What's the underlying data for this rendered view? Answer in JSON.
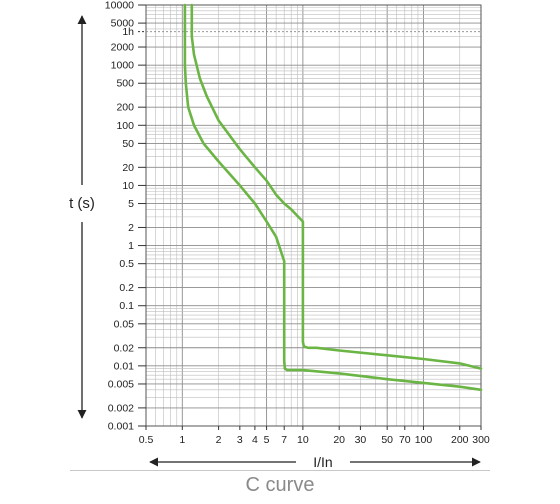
{
  "chart_data": {
    "type": "line",
    "title": "C curve",
    "xlabel": "I / In",
    "ylabel": "t (s)",
    "x_scale": "log",
    "y_scale": "log",
    "xlim": [
      0.5,
      300
    ],
    "ylim": [
      0.001,
      10000
    ],
    "grid": true,
    "x_ticks": [
      "0.5",
      "1",
      "2",
      "3",
      "4",
      "5",
      "7",
      "10",
      "20",
      "30",
      "50",
      "70",
      "100",
      "200",
      "300"
    ],
    "x_tick_values": [
      0.5,
      1,
      2,
      3,
      4,
      5,
      7,
      10,
      20,
      30,
      50,
      70,
      100,
      200,
      300
    ],
    "y_ticks": [
      "10000",
      "5000",
      "1h",
      "2000",
      "1000",
      "500",
      "200",
      "100",
      "50",
      "20",
      "10",
      "5",
      "2",
      "1",
      "0.5",
      "0.2",
      "0.1",
      "0.05",
      "0.02",
      "0.01",
      "0.005",
      "0.002",
      "0.001"
    ],
    "y_tick_values": [
      10000,
      5000,
      3600,
      2000,
      1000,
      500,
      200,
      100,
      50,
      20,
      10,
      5,
      2,
      1,
      0.5,
      0.2,
      0.1,
      0.05,
      0.02,
      0.01,
      0.005,
      0.002,
      0.001
    ],
    "line_color": "#6bb545",
    "series": [
      {
        "x": [
          1.05,
          1.05,
          1.07,
          1.12,
          1.25,
          1.5,
          2.0,
          3.0,
          4.0,
          5.0,
          6.0,
          7.0,
          7.0,
          7.1,
          7.4,
          8.0,
          10,
          20,
          50,
          100,
          200,
          300
        ],
        "y": [
          10000,
          1000,
          500,
          200,
          100,
          50,
          25,
          10,
          5,
          2.5,
          1.4,
          0.55,
          0.012,
          0.009,
          0.0085,
          0.0085,
          0.0085,
          0.0075,
          0.006,
          0.0052,
          0.0045,
          0.004
        ]
      },
      {
        "x": [
          1.2,
          1.2,
          1.25,
          1.4,
          1.6,
          2.0,
          3.0,
          4.0,
          5.0,
          6.0,
          7.0,
          8.0,
          10,
          10,
          10.2,
          11,
          13,
          20,
          50,
          100,
          200,
          300
        ],
        "y": [
          10000,
          3000,
          1500,
          600,
          300,
          120,
          40,
          20,
          12,
          7,
          5,
          4,
          2.5,
          0.025,
          0.021,
          0.02,
          0.02,
          0.018,
          0.015,
          0.013,
          0.011,
          0.009
        ]
      }
    ]
  }
}
